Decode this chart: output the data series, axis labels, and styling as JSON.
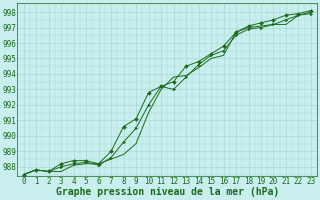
{
  "title": "Graphe pression niveau de la mer (hPa)",
  "xlabel_hours": [
    0,
    1,
    2,
    3,
    4,
    5,
    6,
    7,
    8,
    9,
    10,
    11,
    12,
    13,
    14,
    15,
    16,
    17,
    18,
    19,
    20,
    21,
    22,
    23
  ],
  "line1": [
    987.5,
    987.8,
    987.7,
    987.7,
    988.1,
    988.2,
    988.2,
    988.5,
    988.8,
    989.5,
    991.5,
    993.0,
    993.8,
    993.9,
    994.4,
    995.0,
    995.2,
    996.7,
    997.0,
    997.1,
    997.2,
    997.2,
    997.8,
    998.0
  ],
  "line2": [
    987.5,
    987.8,
    987.7,
    988.0,
    988.2,
    988.3,
    988.1,
    988.6,
    989.6,
    990.5,
    992.0,
    993.2,
    993.0,
    993.8,
    994.6,
    995.2,
    995.5,
    996.5,
    996.9,
    997.0,
    997.2,
    997.5,
    997.8,
    997.9
  ],
  "line3": [
    987.5,
    987.8,
    987.7,
    988.2,
    988.4,
    988.4,
    988.2,
    989.0,
    990.6,
    991.1,
    992.8,
    993.2,
    993.5,
    994.5,
    994.8,
    995.3,
    995.8,
    996.7,
    997.1,
    997.3,
    997.5,
    997.8,
    997.9,
    998.1
  ],
  "ylim_min": 987.4,
  "ylim_max": 998.6,
  "yticks": [
    988,
    989,
    990,
    991,
    992,
    993,
    994,
    995,
    996,
    997,
    998
  ],
  "xlim_min": -0.5,
  "xlim_max": 23.5,
  "line_color": "#1a6b1a",
  "marker_color": "#1a6b1a",
  "bg_color": "#c8eeed",
  "grid_color": "#a0d4d4",
  "title_color": "#1a6b1a",
  "tick_color": "#1a6b1a",
  "fontsize_title": 7,
  "fontsize_ticks": 5.5
}
